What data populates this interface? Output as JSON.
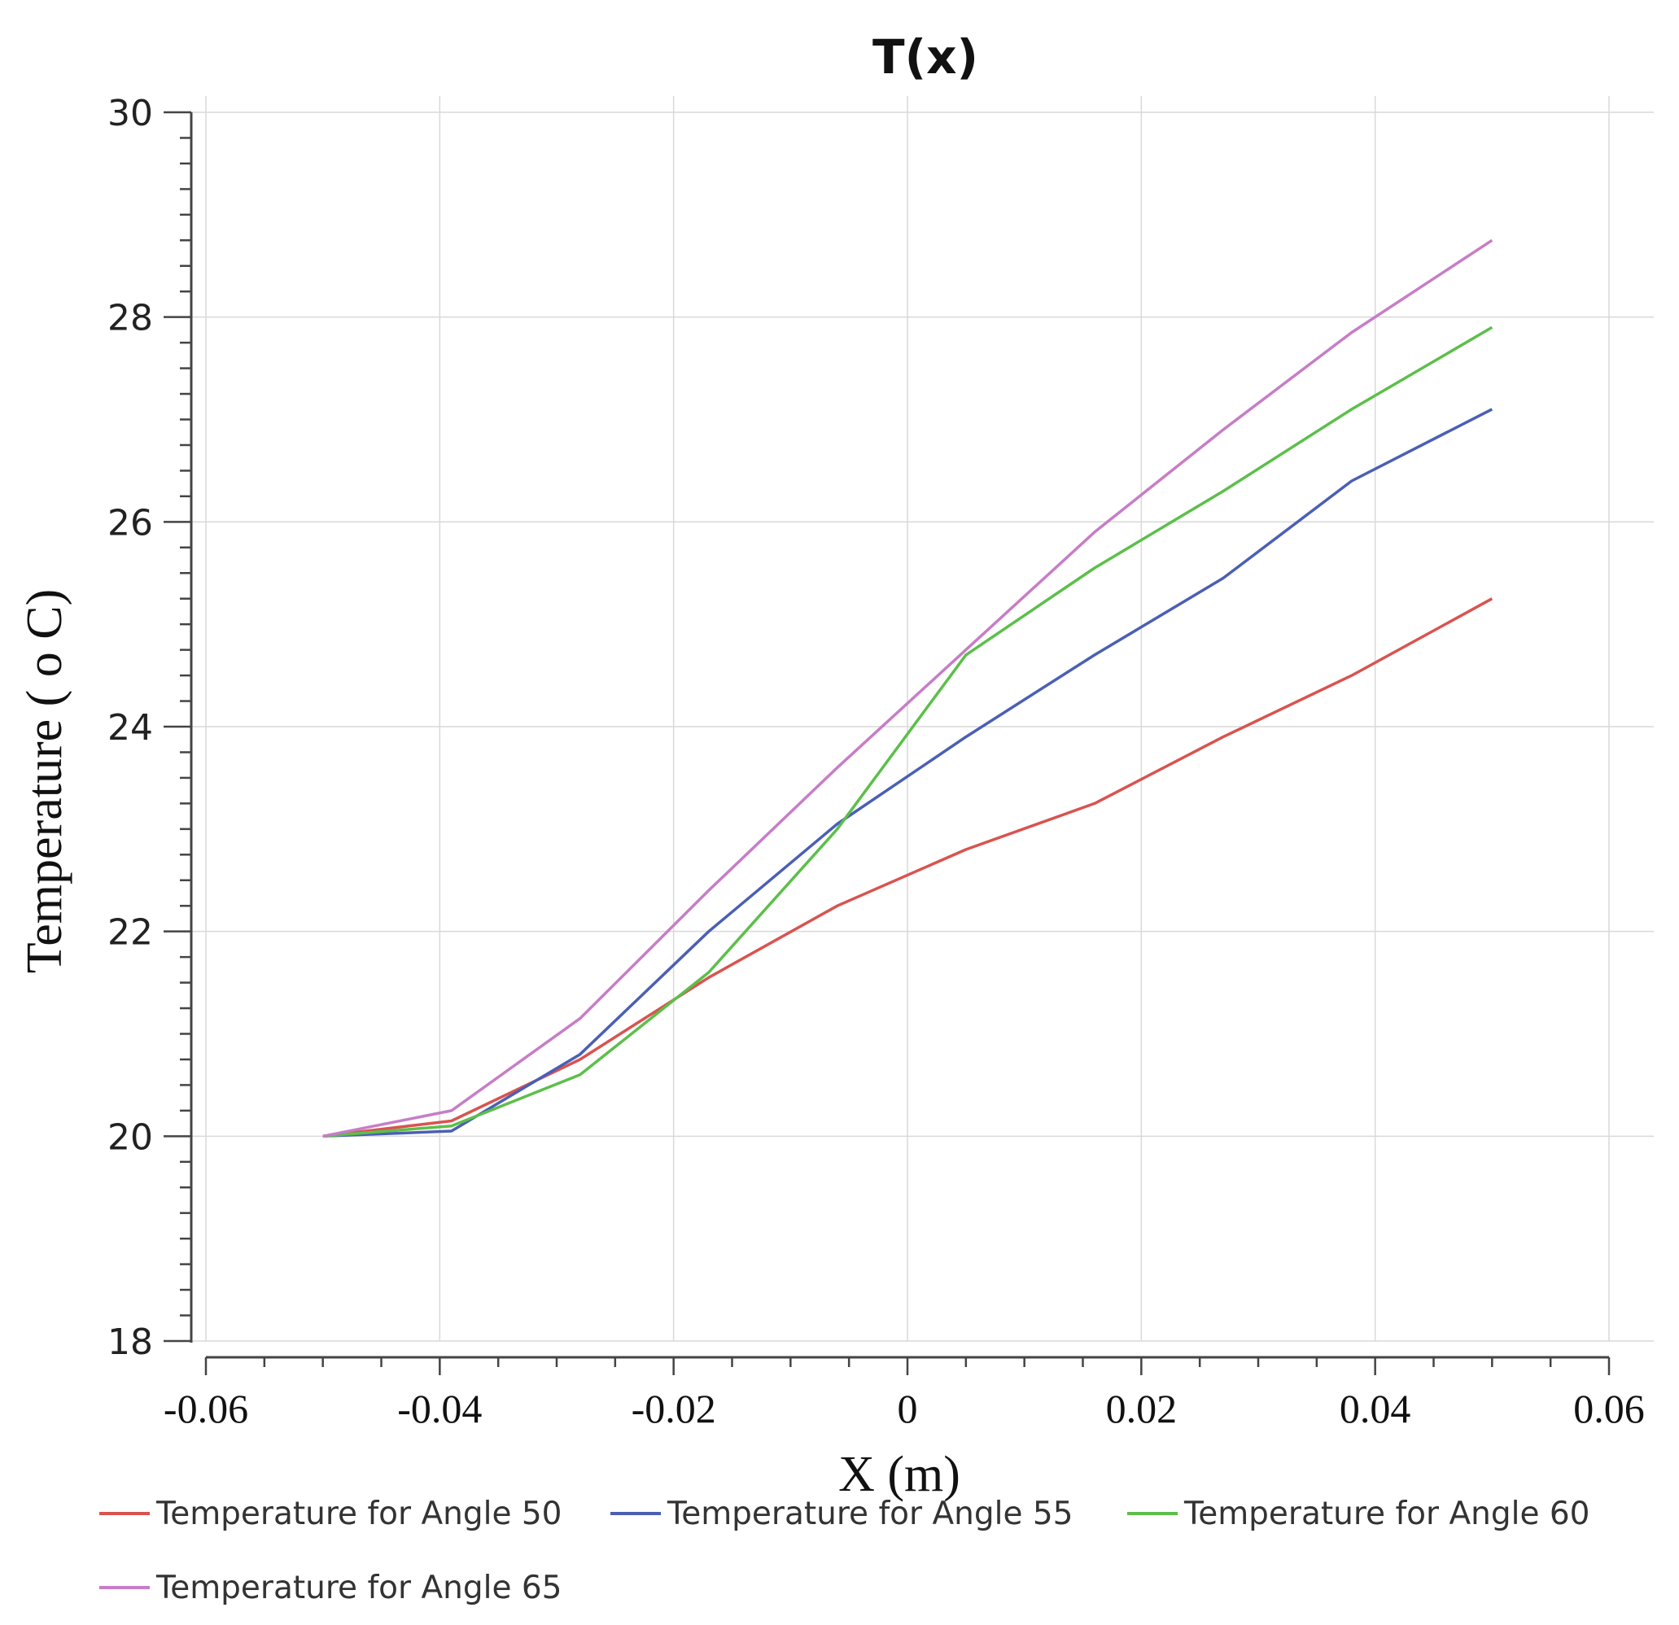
{
  "chart_data": {
    "type": "line",
    "title": "T(x)",
    "xlabel": "X (m)",
    "ylabel": "Temperature ( o C)",
    "xlim": [
      -0.06,
      0.06
    ],
    "ylim": [
      18,
      30
    ],
    "xticks": [
      "-0.06",
      "-0.04",
      "-0.02",
      "0",
      "0.02",
      "0.04",
      "0.06"
    ],
    "yticks": [
      "18",
      "20",
      "22",
      "24",
      "26",
      "28",
      "30"
    ],
    "grid": true,
    "legend_position": "bottom",
    "x": [
      -0.05,
      -0.039,
      -0.028,
      -0.017,
      -0.006,
      0.005,
      0.016,
      0.027,
      0.038,
      0.05
    ],
    "series": [
      {
        "name": "Temperature for Angle 50",
        "color": "#d9534f",
        "values": [
          20.0,
          20.15,
          20.75,
          21.55,
          22.25,
          22.8,
          23.25,
          23.9,
          24.5,
          25.25
        ]
      },
      {
        "name": "Temperature for Angle 55",
        "color": "#4a5fb5",
        "values": [
          20.0,
          20.05,
          20.8,
          22.0,
          23.05,
          23.9,
          24.7,
          25.45,
          26.4,
          27.1
        ]
      },
      {
        "name": "Temperature for Angle 60",
        "color": "#5cbf4a",
        "values": [
          20.0,
          20.1,
          20.6,
          21.6,
          23.0,
          24.7,
          25.55,
          26.3,
          27.1,
          27.9
        ]
      },
      {
        "name": "Temperature for Angle 65",
        "color": "#c77dc7",
        "values": [
          20.0,
          20.25,
          21.15,
          22.4,
          23.6,
          24.75,
          25.9,
          26.9,
          27.85,
          28.75
        ]
      }
    ]
  }
}
